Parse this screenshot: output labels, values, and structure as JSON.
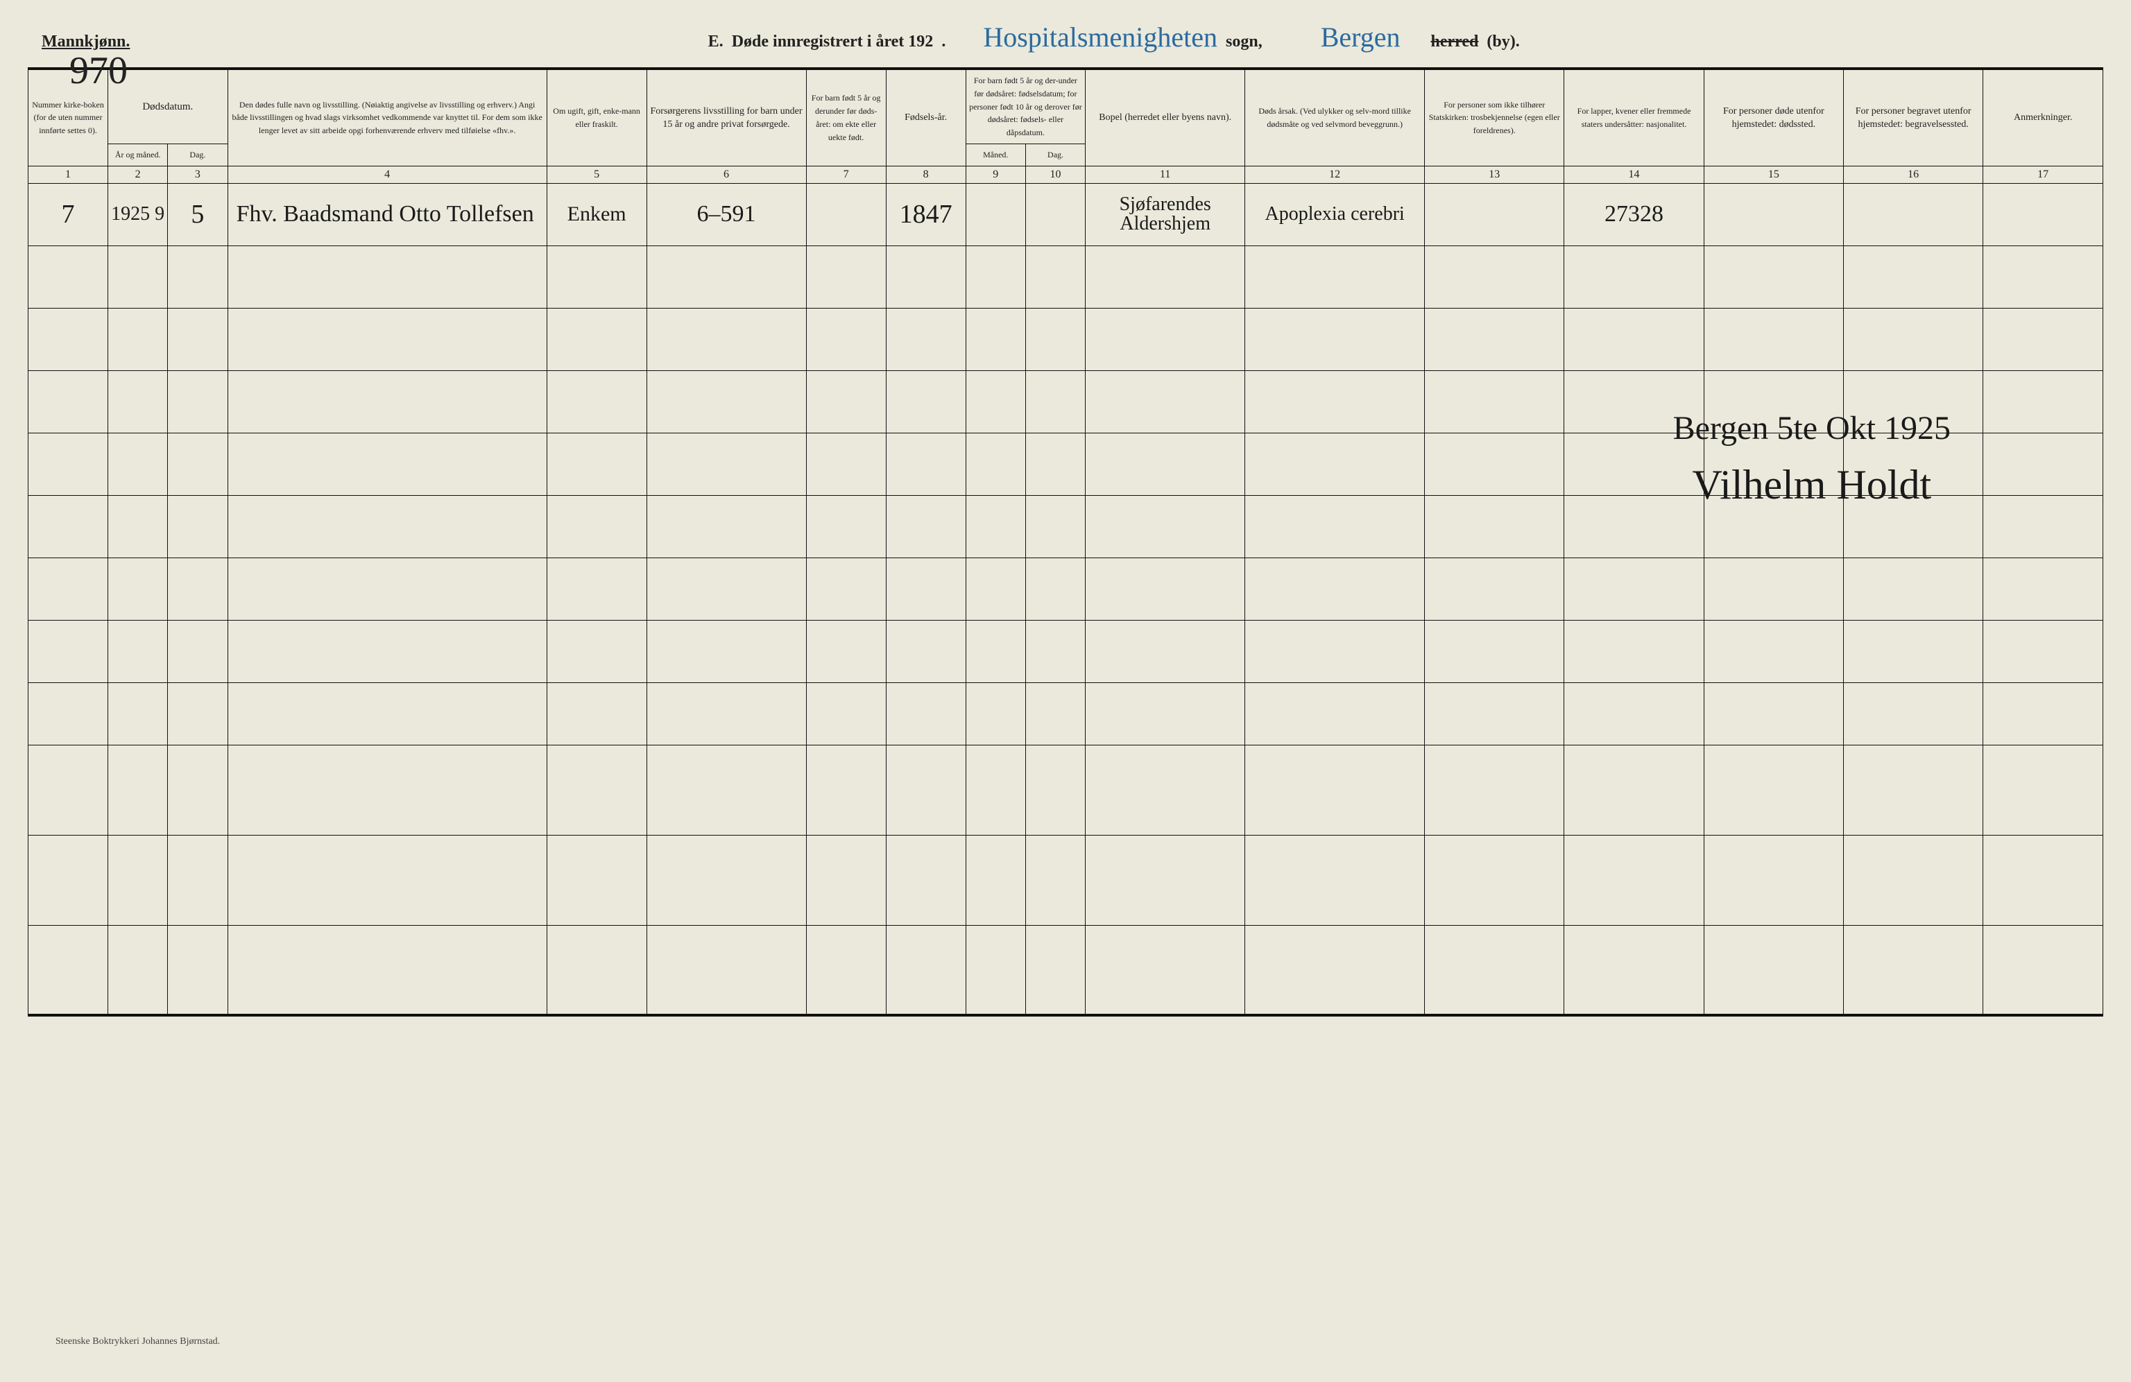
{
  "header": {
    "gender_label": "Mannkjønn.",
    "page_number_hand": "970",
    "section_letter": "E.",
    "section_title": "Døde innregistrert i året 192",
    "period": ".",
    "sogn_hand": "Hospitalsmenigheten",
    "sogn_label": "sogn,",
    "by_hand": "Bergen",
    "herred_label": "herred",
    "by_label": "(by)."
  },
  "columns": {
    "c1": "Nummer kirke-boken (for de uten nummer innførte settes 0).",
    "c2_group": "Dødsdatum.",
    "c2a": "År og måned.",
    "c2b": "Dag.",
    "c4": "Den dødes fulle navn og livsstilling. (Nøiaktig angivelse av livsstilling og erhverv.) Angi både livsstillingen og hvad slags virksomhet vedkommende var knyttet til. For dem som ikke lenger levet av sitt arbeide opgi forhenværende erhverv med tilføielse «fhv.».",
    "c5": "Om ugift, gift, enke-mann eller fraskilt.",
    "c6": "Forsørgerens livsstilling for barn under 15 år og andre privat forsørgede.",
    "c7": "For barn født 5 år og derunder før døds-året: om ekte eller uekte født.",
    "c8": "Fødsels-år.",
    "c9_group": "For barn født 5 år og der-under før dødsåret: fødselsdatum; for personer født 10 år og derover før dødsåret: fødsels- eller dåpsdatum.",
    "c9a": "Måned.",
    "c9b": "Dag.",
    "c11": "Bopel (herredet eller byens navn).",
    "c12": "Døds årsak. (Ved ulykker og selv-mord tillike dødsmåte og ved selvmord beveggrunn.)",
    "c13": "For personer som ikke tilhører Statskirken: trosbekjennelse (egen eller foreldrenes).",
    "c14": "For lapper, kvener eller fremmede staters undersåtter: nasjonalitet.",
    "c15": "For personer døde utenfor hjemstedet: dødssted.",
    "c16": "For personer begravet utenfor hjemstedet: begravelsessted.",
    "c17": "Anmerkninger."
  },
  "col_numbers": [
    "1",
    "2",
    "3",
    "4",
    "5",
    "6",
    "7",
    "8",
    "9",
    "10",
    "11",
    "12",
    "13",
    "14",
    "15",
    "16",
    "17"
  ],
  "col_widths_pct": [
    4,
    3,
    3,
    16,
    5,
    8,
    4,
    4,
    3,
    3,
    8,
    9,
    7,
    7,
    7,
    7,
    6
  ],
  "row1": {
    "num": "7",
    "year_month": "1925 9",
    "day": "5",
    "name": "Fhv. Baadsmand Otto Tollefsen",
    "civil": "Enkem",
    "provider": "6–591",
    "legit": "",
    "birthyear": "1847",
    "bmonth": "",
    "bday": "",
    "residence": "Sjøfarendes Aldershjem",
    "cause": "Apoplexia cerebri",
    "faith": "",
    "nationality": "27328",
    "deathplace": "",
    "burialplace": "",
    "remarks": ""
  },
  "signature": {
    "line1": "Bergen 5te Okt 1925",
    "line2": "Vilhelm Holdt"
  },
  "footer_printer": "Steenske Boktrykkeri Johannes Bjørnstad.",
  "colors": {
    "paper": "#eae9db",
    "ink": "#1a1a1a",
    "blue_ink": "#2b6aa0",
    "pencil": "#7a7a7a",
    "rule": "#111111"
  },
  "empty_rows": 11
}
